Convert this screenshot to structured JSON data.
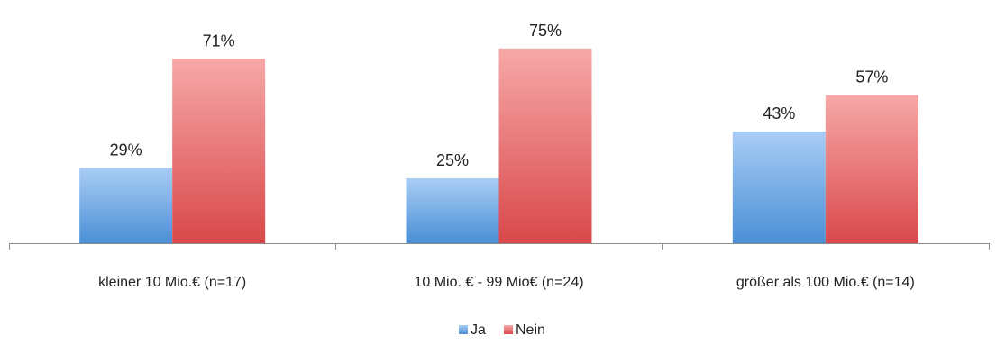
{
  "chart_data": {
    "type": "bar",
    "categories": [
      "kleiner 10 Mio.€ (n=17)",
      "10 Mio. € - 99 Mio€ (n=24)",
      "größer als 100 Mio.€ (n=14)"
    ],
    "series": [
      {
        "name": "Ja",
        "values": [
          29,
          25,
          43
        ],
        "labels": [
          "29%",
          "25%",
          "43%"
        ],
        "color": "#5b9bd5"
      },
      {
        "name": "Nein",
        "values": [
          71,
          75,
          57
        ],
        "labels": [
          "71%",
          "75%",
          "57%"
        ],
        "color": "#e05a5a"
      }
    ],
    "ylim": [
      0,
      100
    ],
    "grid": false,
    "legend": "bottom-center",
    "value_format": "percent"
  }
}
